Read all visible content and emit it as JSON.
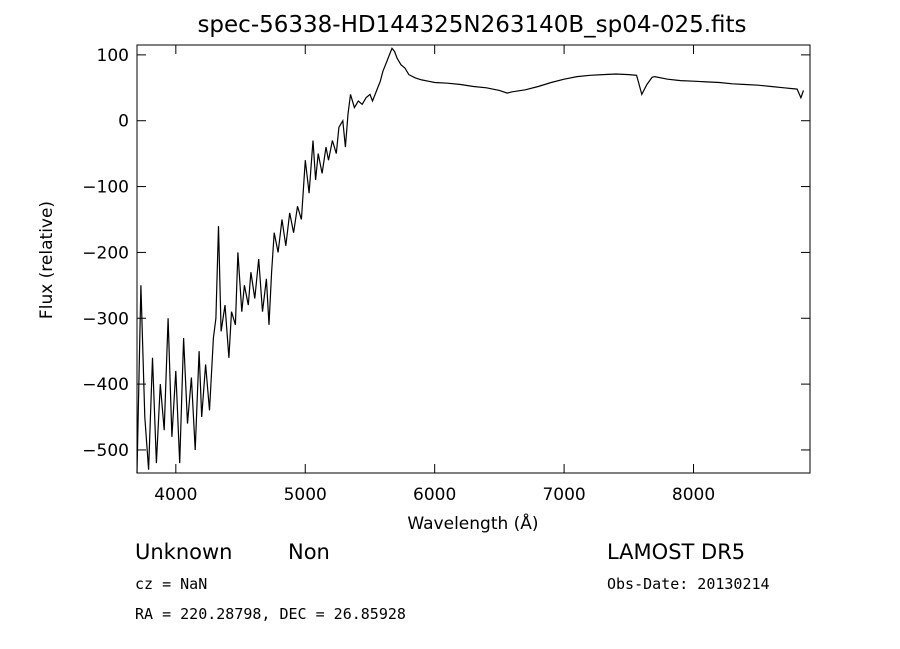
{
  "chart_data": {
    "type": "line",
    "title": "spec-56338-HD144325N263140B_sp04-025.fits",
    "xlabel": "Wavelength (Å)",
    "ylabel": "Flux (relative)",
    "xlim": [
      3700,
      8900
    ],
    "ylim": [
      -535,
      115
    ],
    "xticks": [
      4000,
      5000,
      6000,
      7000,
      8000
    ],
    "yticks": [
      -500,
      -400,
      -300,
      -200,
      -100,
      0,
      100
    ],
    "series": [
      {
        "points": [
          [
            3700,
            -540
          ],
          [
            3730,
            -250
          ],
          [
            3760,
            -450
          ],
          [
            3790,
            -530
          ],
          [
            3820,
            -360
          ],
          [
            3850,
            -520
          ],
          [
            3880,
            -400
          ],
          [
            3910,
            -470
          ],
          [
            3940,
            -300
          ],
          [
            3970,
            -480
          ],
          [
            4000,
            -380
          ],
          [
            4030,
            -520
          ],
          [
            4060,
            -330
          ],
          [
            4090,
            -460
          ],
          [
            4120,
            -390
          ],
          [
            4150,
            -500
          ],
          [
            4180,
            -350
          ],
          [
            4200,
            -450
          ],
          [
            4230,
            -370
          ],
          [
            4260,
            -440
          ],
          [
            4290,
            -330
          ],
          [
            4310,
            -300
          ],
          [
            4330,
            -160
          ],
          [
            4350,
            -320
          ],
          [
            4380,
            -280
          ],
          [
            4410,
            -360
          ],
          [
            4430,
            -290
          ],
          [
            4460,
            -310
          ],
          [
            4480,
            -200
          ],
          [
            4510,
            -290
          ],
          [
            4530,
            -250
          ],
          [
            4560,
            -280
          ],
          [
            4580,
            -230
          ],
          [
            4610,
            -270
          ],
          [
            4640,
            -210
          ],
          [
            4670,
            -290
          ],
          [
            4700,
            -240
          ],
          [
            4720,
            -310
          ],
          [
            4740,
            -230
          ],
          [
            4760,
            -170
          ],
          [
            4790,
            -200
          ],
          [
            4820,
            -150
          ],
          [
            4850,
            -190
          ],
          [
            4880,
            -140
          ],
          [
            4910,
            -170
          ],
          [
            4940,
            -130
          ],
          [
            4970,
            -150
          ],
          [
            5000,
            -60
          ],
          [
            5030,
            -110
          ],
          [
            5060,
            -30
          ],
          [
            5080,
            -90
          ],
          [
            5100,
            -50
          ],
          [
            5130,
            -80
          ],
          [
            5160,
            -40
          ],
          [
            5180,
            -60
          ],
          [
            5210,
            -30
          ],
          [
            5240,
            -50
          ],
          [
            5260,
            -10
          ],
          [
            5290,
            0
          ],
          [
            5310,
            -40
          ],
          [
            5330,
            10
          ],
          [
            5350,
            40
          ],
          [
            5380,
            20
          ],
          [
            5410,
            30
          ],
          [
            5440,
            25
          ],
          [
            5470,
            35
          ],
          [
            5500,
            40
          ],
          [
            5520,
            30
          ],
          [
            5550,
            45
          ],
          [
            5580,
            60
          ],
          [
            5600,
            75
          ],
          [
            5630,
            90
          ],
          [
            5650,
            100
          ],
          [
            5670,
            110
          ],
          [
            5690,
            105
          ],
          [
            5710,
            95
          ],
          [
            5740,
            85
          ],
          [
            5770,
            80
          ],
          [
            5800,
            70
          ],
          [
            5850,
            65
          ],
          [
            5900,
            62
          ],
          [
            5950,
            60
          ],
          [
            6000,
            58
          ],
          [
            6100,
            57
          ],
          [
            6200,
            55
          ],
          [
            6300,
            52
          ],
          [
            6400,
            50
          ],
          [
            6500,
            46
          ],
          [
            6560,
            42
          ],
          [
            6600,
            44
          ],
          [
            6700,
            47
          ],
          [
            6800,
            52
          ],
          [
            6900,
            58
          ],
          [
            7000,
            63
          ],
          [
            7100,
            67
          ],
          [
            7200,
            69
          ],
          [
            7300,
            70
          ],
          [
            7400,
            71
          ],
          [
            7500,
            70
          ],
          [
            7560,
            69
          ],
          [
            7600,
            40
          ],
          [
            7640,
            55
          ],
          [
            7680,
            66
          ],
          [
            7700,
            67
          ],
          [
            7800,
            63
          ],
          [
            7900,
            61
          ],
          [
            8000,
            60
          ],
          [
            8100,
            59
          ],
          [
            8200,
            58
          ],
          [
            8300,
            56
          ],
          [
            8400,
            55
          ],
          [
            8500,
            54
          ],
          [
            8600,
            52
          ],
          [
            8700,
            50
          ],
          [
            8800,
            48
          ],
          [
            8830,
            35
          ],
          [
            8850,
            46
          ]
        ]
      }
    ]
  },
  "footer": {
    "object_class": "Unknown",
    "object_subclass": "Non",
    "survey": "LAMOST DR5",
    "cz": "cz = NaN",
    "obs_date": "Obs-Date: 20130214",
    "coords": "RA = 220.28798, DEC =  26.85928"
  }
}
